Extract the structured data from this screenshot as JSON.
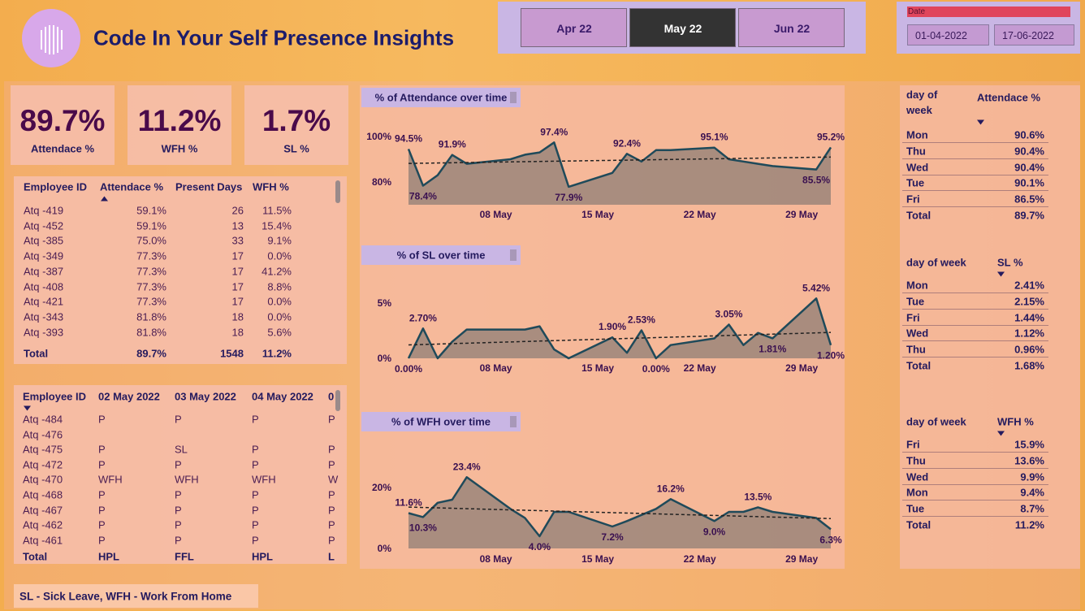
{
  "header": {
    "title": "Code In Your Self Presence Insights"
  },
  "month_slicer": {
    "options": [
      "Apr 22",
      "May 22",
      "Jun 22"
    ],
    "selected_index": 1
  },
  "date_slicer": {
    "label": "Date",
    "start": "01-04-2022",
    "end": "17-06-2022"
  },
  "kpis": [
    {
      "value": "89.7%",
      "label": "Attendace %"
    },
    {
      "value": "11.2%",
      "label": "WFH %"
    },
    {
      "value": "1.7%",
      "label": "SL %"
    }
  ],
  "employee_table": {
    "columns": [
      "Employee ID",
      "Attendace %",
      "Present Days",
      "WFH %"
    ],
    "rows": [
      [
        "Atq -419",
        "59.1%",
        "26",
        "11.5%"
      ],
      [
        "Atq -452",
        "59.1%",
        "13",
        "15.4%"
      ],
      [
        "Atq -385",
        "75.0%",
        "33",
        "9.1%"
      ],
      [
        "Atq -349",
        "77.3%",
        "17",
        "0.0%"
      ],
      [
        "Atq -387",
        "77.3%",
        "17",
        "41.2%"
      ],
      [
        "Atq -408",
        "77.3%",
        "17",
        "8.8%"
      ],
      [
        "Atq -421",
        "77.3%",
        "17",
        "0.0%"
      ],
      [
        "Atq -343",
        "81.8%",
        "18",
        "0.0%"
      ],
      [
        "Atq -393",
        "81.8%",
        "18",
        "5.6%"
      ]
    ],
    "total": [
      "Total",
      "89.7%",
      "1548",
      "11.2%"
    ]
  },
  "daily_table": {
    "columns": [
      "Employee ID",
      "02 May 2022",
      "03 May 2022",
      "04 May 2022",
      "0"
    ],
    "rows": [
      [
        "Atq -484",
        "P",
        "P",
        "P",
        "P"
      ],
      [
        "Atq -476",
        null,
        null,
        null,
        null
      ],
      [
        "Atq -475",
        "P",
        "SL",
        "P",
        "P"
      ],
      [
        "Atq -472",
        "P",
        "P",
        "P",
        "P"
      ],
      [
        "Atq -470",
        "WFH",
        "WFH",
        "WFH",
        "W"
      ],
      [
        "Atq -468",
        "P",
        "P",
        "P",
        "P"
      ],
      [
        "Atq -467",
        "P",
        "P",
        "P",
        "P"
      ],
      [
        "Atq -462",
        "P",
        "P",
        "P",
        "P"
      ],
      [
        "Atq -461",
        "P",
        "P",
        "P",
        "P"
      ]
    ],
    "total": [
      "Total",
      "HPL",
      "FFL",
      "HPL",
      "L"
    ]
  },
  "weekday_tables": [
    {
      "columns": [
        "day of week",
        "Attendace %"
      ],
      "rows": [
        [
          "Mon",
          "90.6%"
        ],
        [
          "Thu",
          "90.4%"
        ],
        [
          "Wed",
          "90.4%"
        ],
        [
          "Tue",
          "90.1%"
        ],
        [
          "Fri",
          "86.5%"
        ]
      ],
      "total": [
        "Total",
        "89.7%"
      ]
    },
    {
      "columns": [
        "day of week",
        "SL %"
      ],
      "rows": [
        [
          "Mon",
          "2.41%"
        ],
        [
          "Tue",
          "2.15%"
        ],
        [
          "Fri",
          "1.44%"
        ],
        [
          "Wed",
          "1.12%"
        ],
        [
          "Thu",
          "0.96%"
        ]
      ],
      "total": [
        "Total",
        "1.68%"
      ]
    },
    {
      "columns": [
        "day of week",
        "WFH %"
      ],
      "rows": [
        [
          "Fri",
          "15.9%"
        ],
        [
          "Thu",
          "13.6%"
        ],
        [
          "Wed",
          "9.9%"
        ],
        [
          "Mon",
          "9.4%"
        ],
        [
          "Tue",
          "8.7%"
        ]
      ],
      "total": [
        "Total",
        "11.2%"
      ]
    }
  ],
  "chart_data": [
    {
      "type": "line",
      "title": "% of Attendance over time",
      "x": [
        2,
        3,
        4,
        5,
        6,
        9,
        10,
        11,
        12,
        13,
        16,
        17,
        18,
        19,
        20,
        23,
        24,
        25,
        26,
        27,
        30,
        31
      ],
      "values": [
        94.5,
        78.4,
        83,
        91.9,
        88,
        90,
        92,
        93,
        97.4,
        77.9,
        84,
        92.4,
        89,
        94,
        94,
        95.1,
        90,
        89,
        88,
        87,
        85.5,
        95.2
      ],
      "value_labels": [
        "94.5%",
        "78.4%",
        null,
        "91.9%",
        null,
        null,
        null,
        null,
        "97.4%",
        "77.9%",
        null,
        "92.4%",
        null,
        null,
        null,
        "95.1%",
        null,
        null,
        null,
        null,
        "85.5%",
        "95.2%"
      ],
      "xlim": [
        2,
        31
      ],
      "xticks": [
        {
          "value": 8,
          "label": "08 May"
        },
        {
          "value": 15,
          "label": "15 May"
        },
        {
          "value": 22,
          "label": "22 May"
        },
        {
          "value": 29,
          "label": "29 May"
        }
      ],
      "ylim": [
        70,
        103
      ],
      "yticks": [
        {
          "value": 100,
          "label": "100%"
        },
        {
          "value": 80,
          "label": "80%"
        }
      ],
      "color": "#1f4a5a",
      "area_color": "#6a6a6a",
      "trend_line": true
    },
    {
      "type": "line",
      "title": "% of SL over time",
      "x": [
        2,
        3,
        4,
        5,
        6,
        9,
        10,
        11,
        12,
        13,
        16,
        17,
        18,
        19,
        20,
        23,
        24,
        25,
        26,
        27,
        30,
        31
      ],
      "values": [
        0.0,
        2.7,
        0.0,
        1.5,
        2.6,
        2.6,
        2.6,
        2.9,
        0.8,
        0.0,
        1.9,
        0.5,
        2.53,
        0.0,
        1.2,
        1.8,
        3.05,
        1.2,
        2.3,
        1.81,
        5.42,
        1.2
      ],
      "value_labels": [
        "0.00%",
        "2.70%",
        null,
        null,
        null,
        null,
        null,
        null,
        null,
        null,
        "1.90%",
        null,
        "2.53%",
        "0.00%",
        null,
        null,
        "3.05%",
        null,
        null,
        "1.81%",
        "5.42%",
        "1.20%"
      ],
      "xlim": [
        2,
        31
      ],
      "xticks": [
        {
          "value": 8,
          "label": "08 May"
        },
        {
          "value": 15,
          "label": "15 May"
        },
        {
          "value": 22,
          "label": "22 May"
        },
        {
          "value": 29,
          "label": "29 May"
        }
      ],
      "ylim": [
        0,
        6
      ],
      "yticks": [
        {
          "value": 5,
          "label": "5%"
        },
        {
          "value": 0,
          "label": "0%"
        }
      ],
      "color": "#1f4a5a",
      "area_color": "#6a6a6a",
      "trend_line": true
    },
    {
      "type": "line",
      "title": "% of WFH over time",
      "x": [
        2,
        3,
        4,
        5,
        6,
        9,
        10,
        11,
        12,
        13,
        16,
        17,
        18,
        19,
        20,
        23,
        24,
        25,
        26,
        27,
        30,
        31
      ],
      "values": [
        11.6,
        10.3,
        15,
        16,
        23.4,
        13,
        10,
        4.0,
        12,
        12,
        7.2,
        9,
        11,
        13,
        16.2,
        9.0,
        12,
        12,
        13.5,
        12,
        10,
        6.3
      ],
      "value_labels": [
        "11.6%",
        "10.3%",
        null,
        null,
        "23.4%",
        null,
        null,
        "4.0%",
        null,
        null,
        "7.2%",
        null,
        null,
        null,
        "16.2%",
        "9.0%",
        null,
        null,
        "13.5%",
        null,
        null,
        "6.3%"
      ],
      "xlim": [
        2,
        31
      ],
      "xticks": [
        {
          "value": 8,
          "label": "08 May"
        },
        {
          "value": 15,
          "label": "15 May"
        },
        {
          "value": 22,
          "label": "22 May"
        },
        {
          "value": 29,
          "label": "29 May"
        }
      ],
      "ylim": [
        0,
        25
      ],
      "yticks": [
        {
          "value": 20,
          "label": "20%"
        },
        {
          "value": 0,
          "label": "0%"
        }
      ],
      "color": "#1f4a5a",
      "area_color": "#6a6a6a",
      "trend_line": true
    }
  ],
  "footer": "SL - Sick Leave, WFH - Work From Home"
}
